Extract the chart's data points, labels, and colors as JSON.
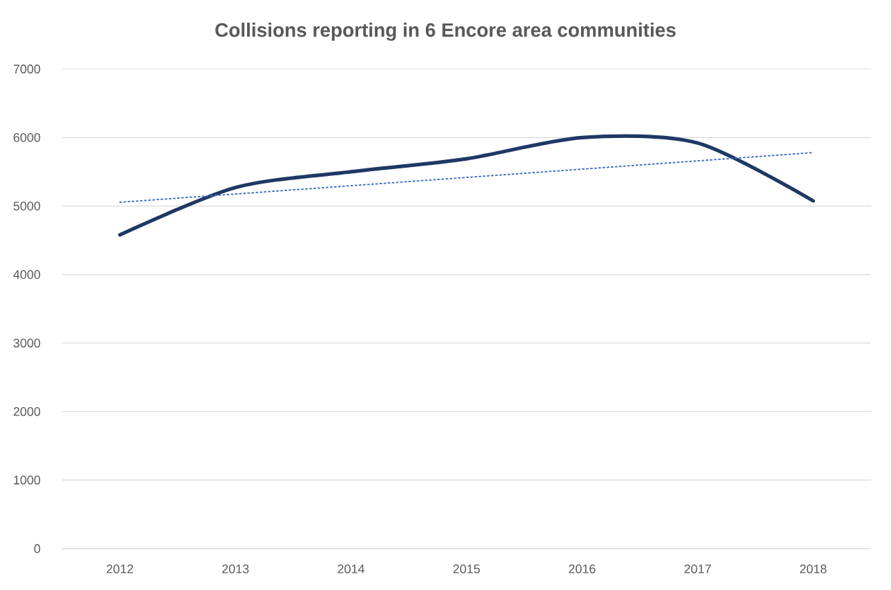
{
  "chart_data": {
    "type": "line",
    "title": "Collisions reporting in 6 Encore area communities",
    "x": [
      2012,
      2013,
      2014,
      2015,
      2016,
      2017,
      2018
    ],
    "series": [
      {
        "color": "#1f3864",
        "values": [
          4580,
          5270,
          5500,
          5690,
          6000,
          5920,
          5075
        ],
        "line_style": "solid"
      },
      {
        "type": "line",
        "color": "#4472c4",
        "x": [
          2012,
          2018
        ],
        "values": [
          5055,
          5780
        ],
        "line_style": "dotted"
      }
    ],
    "xlim": [
      2011.5,
      2018.5
    ],
    "xticks": [
      2012,
      2013,
      2014,
      2015,
      2016,
      2017,
      2018
    ],
    "ylim": [
      0,
      7000
    ],
    "yticks": [
      0,
      1000,
      2000,
      3000,
      4000,
      5000,
      6000,
      7000
    ],
    "grid": "y",
    "marker": "none"
  }
}
